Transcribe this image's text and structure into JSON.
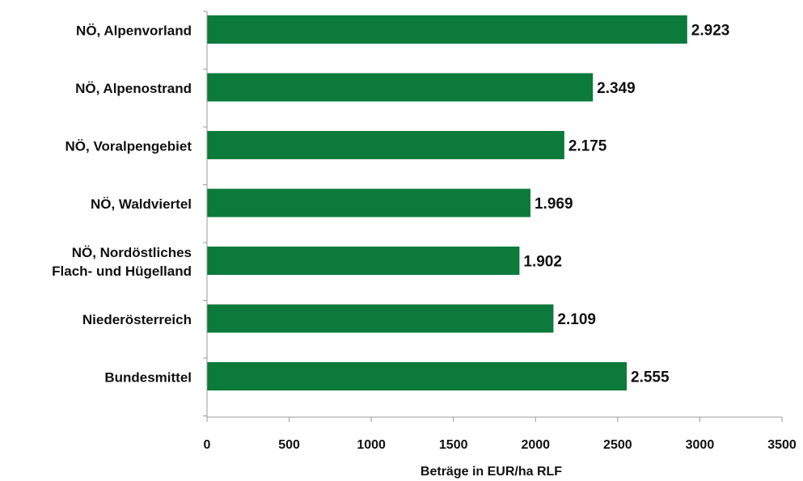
{
  "chart_data": {
    "type": "bar",
    "orientation": "horizontal",
    "categories": [
      "NÖ, Alpenvorland",
      "NÖ, Alpenostrand",
      "NÖ, Voralpengebiet",
      "NÖ, Waldviertel",
      "NÖ, Nordöstliches Flach- und Hügelland",
      "Niederösterreich",
      "Bundesmittel"
    ],
    "category_label_lines": [
      [
        "NÖ, Alpenvorland"
      ],
      [
        "NÖ, Alpenostrand"
      ],
      [
        "NÖ, Voralpengebiet"
      ],
      [
        "NÖ, Waldviertel"
      ],
      [
        "NÖ, Nordöstliches",
        "Flach- und Hügelland"
      ],
      [
        "Niederösterreich"
      ],
      [
        "Bundesmittel"
      ]
    ],
    "values": [
      2923,
      2349,
      2175,
      1969,
      1902,
      2109,
      2555
    ],
    "value_labels": [
      "2.923",
      "2.349",
      "2.175",
      "1.969",
      "1.902",
      "2.109",
      "2.555"
    ],
    "xlabel": "Beträge in EUR/ha RLF",
    "ylabel": "",
    "xlim": [
      0,
      3500
    ],
    "xticks": [
      0,
      500,
      1000,
      1500,
      2000,
      2500,
      3000,
      3500
    ],
    "grid": false,
    "legend": "none",
    "colors": {
      "bar": "#0b7a3b",
      "axis": "#9a9a9a",
      "text": "#111111"
    }
  }
}
